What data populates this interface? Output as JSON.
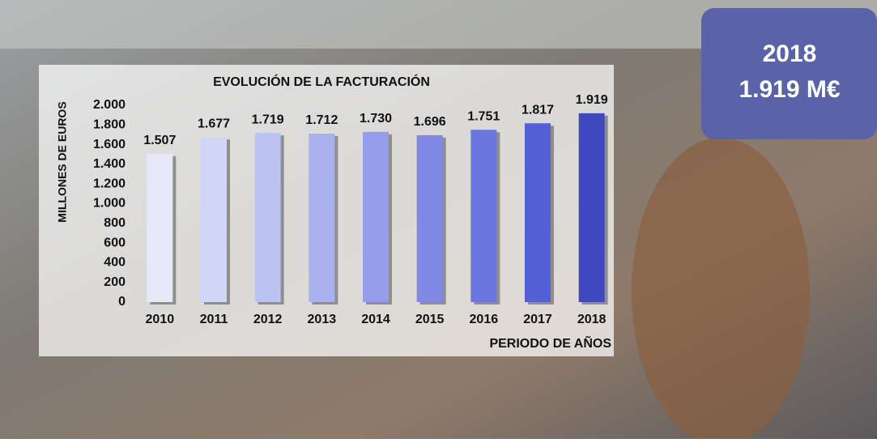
{
  "chart_data": {
    "type": "bar",
    "title": "EVOLUCIÓN DE LA FACTURACIÓN",
    "y_axis_label": "MILLONES DE EUROS",
    "x_axis_label": "PERIODO DE AÑOS",
    "categories": [
      "2010",
      "2011",
      "2012",
      "2013",
      "2014",
      "2015",
      "2016",
      "2017",
      "2018"
    ],
    "values": [
      1507,
      1677,
      1719,
      1712,
      1730,
      1696,
      1751,
      1817,
      1919
    ],
    "value_labels": [
      "1.507",
      "1.677",
      "1.719",
      "1.712",
      "1.730",
      "1.696",
      "1.751",
      "1.817",
      "1.919"
    ],
    "colors": [
      "#e6e8f8",
      "#d2d6f6",
      "#bcc2f2",
      "#a9b0ee",
      "#949ceb",
      "#808ae6",
      "#6b76e0",
      "#5660d6",
      "#3f48bf"
    ],
    "ylim": [
      0,
      2000
    ],
    "yticks": [
      0,
      200,
      400,
      600,
      800,
      {
        "value": 1000,
        "label": "1.000"
      },
      {
        "value": 1200,
        "label": "1.200"
      },
      {
        "value": 1400,
        "label": "1.400"
      },
      {
        "value": 1600,
        "label": "1.600"
      },
      {
        "value": 1800,
        "label": "1.800"
      },
      {
        "value": 2000,
        "label": "2.000"
      }
    ],
    "grid": false,
    "callout": {
      "year": "2018",
      "value": "1.919 M€"
    }
  }
}
